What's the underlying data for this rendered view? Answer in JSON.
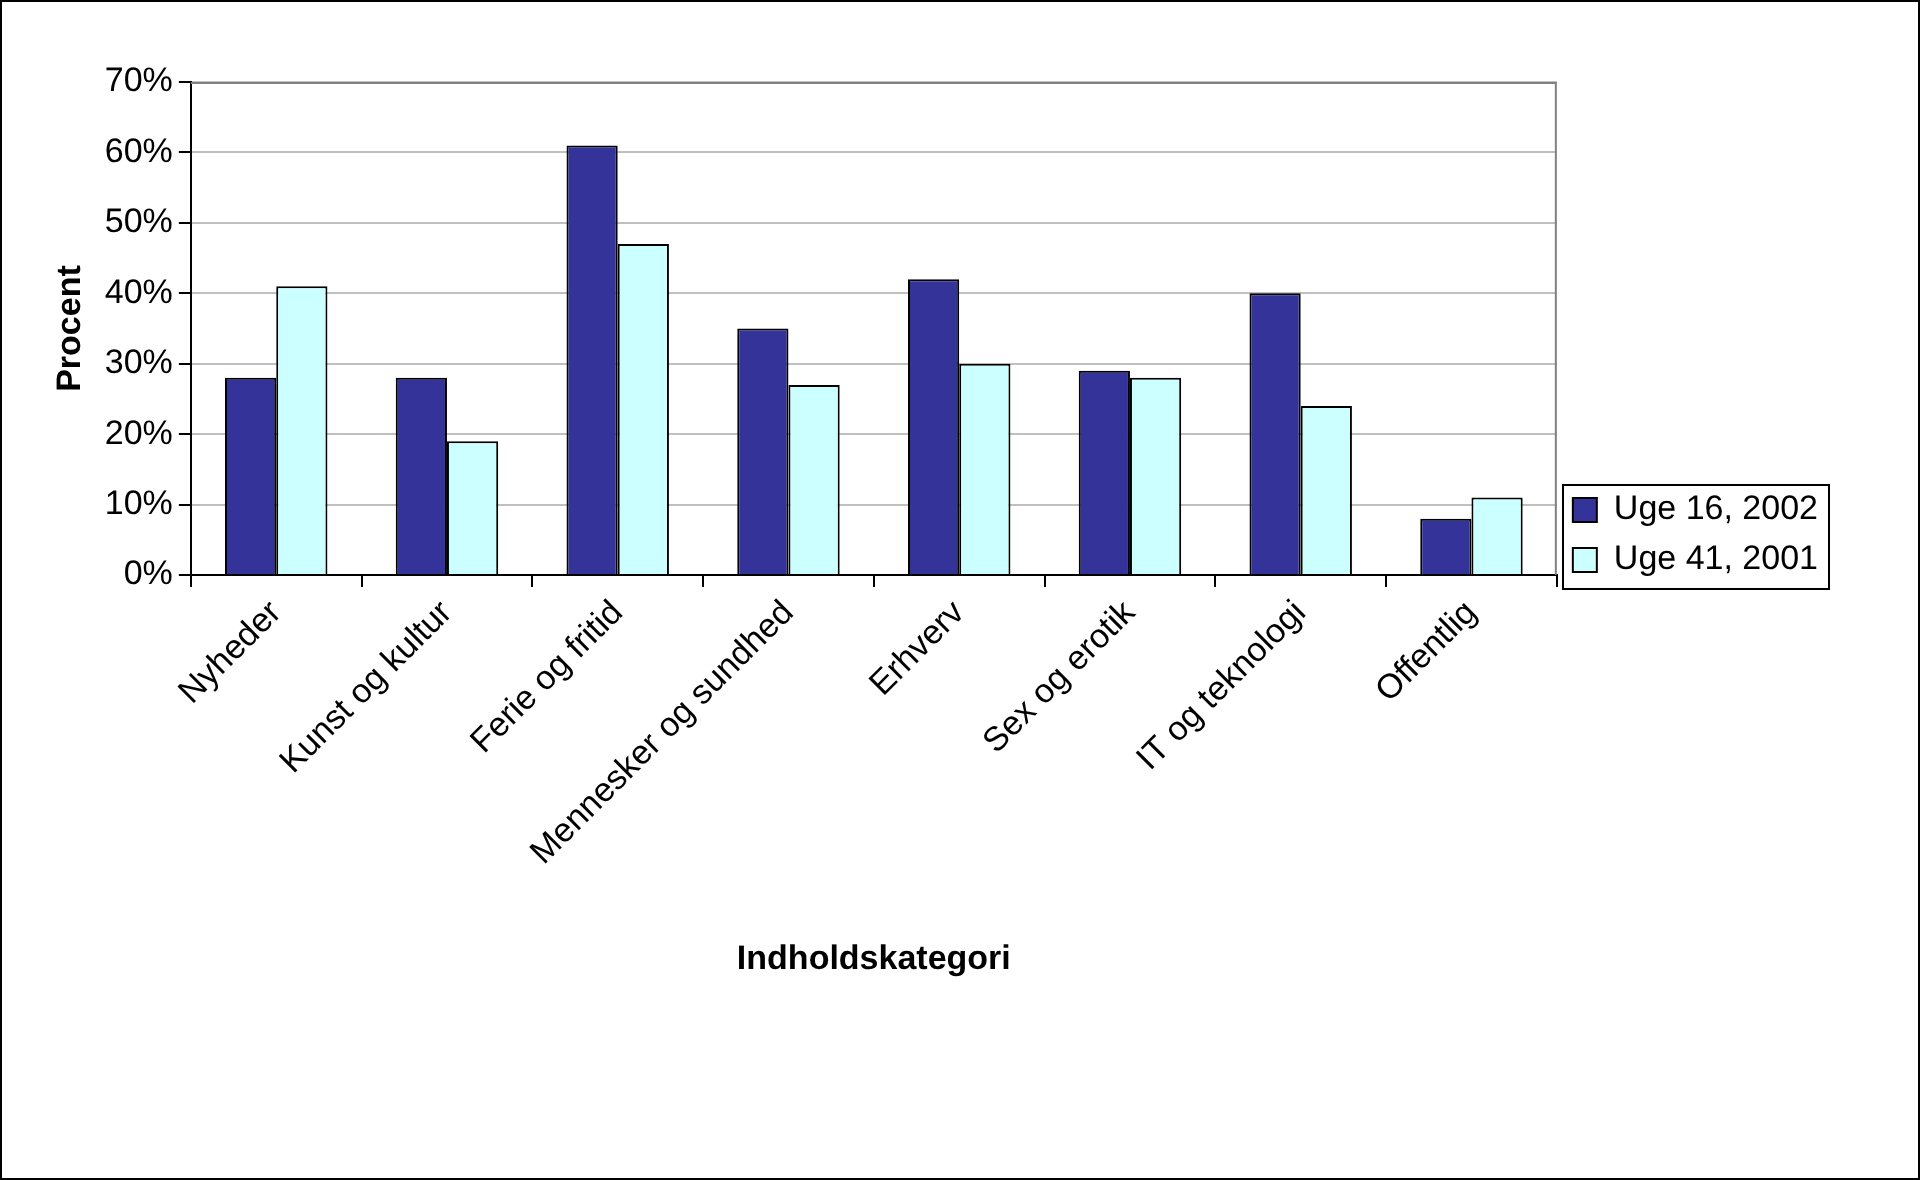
{
  "chart_data": {
    "type": "bar",
    "xlabel": "Indholdskategori",
    "ylabel": "Procent",
    "categories": [
      "Nyheder",
      "Kunst og kultur",
      "Ferie og fritid",
      "Mennesker og sundhed",
      "Erhverv",
      "Sex og erotik",
      "IT og teknologi",
      "Offentlig"
    ],
    "series": [
      {
        "name": "Uge 16, 2002",
        "color": "#333399",
        "values": [
          28,
          28,
          61,
          35,
          42,
          29,
          40,
          8
        ]
      },
      {
        "name": "Uge 41, 2001",
        "color": "#ccffff",
        "values": [
          41,
          19,
          47,
          27,
          30,
          28,
          24,
          11
        ]
      }
    ],
    "ylim": [
      0,
      70
    ],
    "yticks": [
      {
        "value": 0,
        "label": "0%"
      },
      {
        "value": 10,
        "label": "10%"
      },
      {
        "value": 20,
        "label": "20%"
      },
      {
        "value": 30,
        "label": "30%"
      },
      {
        "value": 40,
        "label": "40%"
      },
      {
        "value": 50,
        "label": "50%"
      },
      {
        "value": 60,
        "label": "60%"
      },
      {
        "value": 70,
        "label": "70%"
      }
    ],
    "grid": "y",
    "legend": "right"
  }
}
